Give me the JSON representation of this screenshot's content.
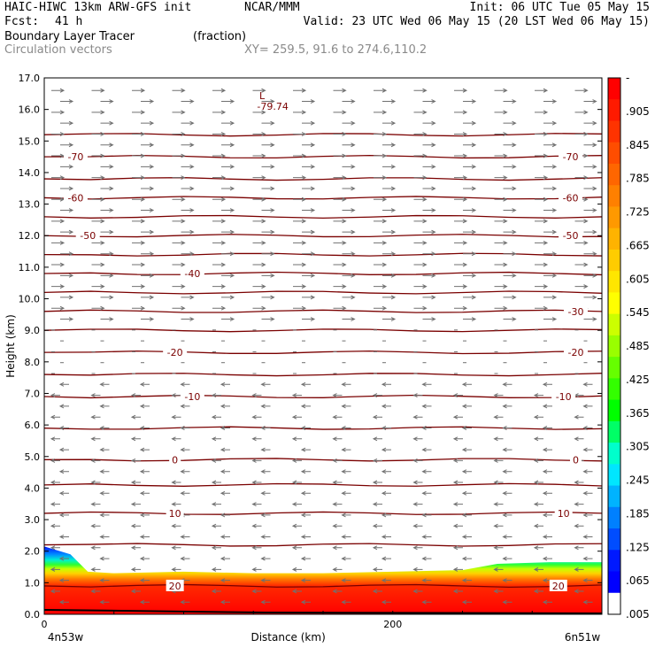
{
  "header": {
    "model": "HAIC-HIWC 13km ARW-GFS init",
    "org": "NCAR/MMM",
    "init": "Init: 06 UTC Tue 05 May 15",
    "fcst_label": "Fcst:",
    "fcst_value": "41 h",
    "valid": "Valid: 23 UTC Wed 06 May 15 (20 LST Wed 06 May 15)",
    "field": "Boundary Layer Tracer",
    "units": "(fraction)",
    "vectors": "Circulation vectors",
    "xy": "XY= 259.5, 91.6 to 274.6,110.2"
  },
  "chart_data": {
    "type": "cross-section",
    "ylabel": "Height (km)",
    "xlabel": "Distance (km)",
    "ylim": [
      0,
      17
    ],
    "xlim": [
      0,
      320
    ],
    "y_ticks": [
      "0.0",
      "1.0",
      "2.0",
      "3.0",
      "4.0",
      "5.0",
      "6.0",
      "7.0",
      "8.0",
      "9.0",
      "10.0",
      "11.0",
      "12.0",
      "13.0",
      "14.0",
      "15.0",
      "16.0",
      "17.0"
    ],
    "x_ticks": [
      {
        "value": 0,
        "label": "0"
      },
      {
        "value": 200,
        "label": "200"
      }
    ],
    "left_endpoint": "4n53w",
    "right_endpoint": "6n51w",
    "low_marker": {
      "symbol": "L",
      "value": "-79.74",
      "x_km": 125,
      "y_km": 16.1
    },
    "temperature_contours": [
      {
        "label": "-70",
        "height_km": 14.5,
        "label_x_km": [
          18,
          302
        ]
      },
      {
        "label": "-60",
        "height_km": 13.2,
        "label_x_km": [
          18,
          302
        ]
      },
      {
        "label": "-50",
        "height_km": 12.0,
        "label_x_km": [
          25,
          302
        ]
      },
      {
        "label": "-40",
        "height_km": 10.8,
        "label_x_km": [
          85
        ]
      },
      {
        "label": "-30",
        "height_km": 9.6,
        "label_x_km": [
          305
        ]
      },
      {
        "label": "-20",
        "height_km": 8.3,
        "label_x_km": [
          75,
          305
        ]
      },
      {
        "label": "-10",
        "height_km": 6.9,
        "label_x_km": [
          85,
          298
        ]
      },
      {
        "label": "0",
        "height_km": 4.9,
        "label_x_km": [
          75,
          305
        ]
      },
      {
        "label": "10",
        "height_km": 3.2,
        "label_x_km": [
          75,
          298
        ]
      },
      {
        "label": "20",
        "height_km": 0.9,
        "label_x_km": [
          75,
          295
        ]
      }
    ],
    "unlabeled_contour_heights_km": [
      15.2,
      13.8,
      12.6,
      11.4,
      10.2,
      9.0,
      7.6,
      5.9,
      4.1,
      2.2
    ],
    "tracer_boundary_km": [
      {
        "x": 0,
        "z": 2.15
      },
      {
        "x": 15,
        "z": 1.9
      },
      {
        "x": 25,
        "z": 1.35
      },
      {
        "x": 40,
        "z": 1.3
      },
      {
        "x": 80,
        "z": 1.35
      },
      {
        "x": 120,
        "z": 1.3
      },
      {
        "x": 160,
        "z": 1.3
      },
      {
        "x": 200,
        "z": 1.35
      },
      {
        "x": 240,
        "z": 1.4
      },
      {
        "x": 260,
        "z": 1.6
      },
      {
        "x": 290,
        "z": 1.65
      },
      {
        "x": 320,
        "z": 1.65
      }
    ],
    "wind_layers": [
      {
        "z_top": 17.0,
        "z_bottom": 9.3,
        "direction": "east"
      },
      {
        "z_top": 9.3,
        "z_bottom": 7.3,
        "direction": "calm"
      },
      {
        "z_top": 7.3,
        "z_bottom": 0.3,
        "direction": "west"
      }
    ],
    "colorbar": {
      "labels": [
        "-",
        ".905",
        ".845",
        ".785",
        ".725",
        ".665",
        ".605",
        ".545",
        ".485",
        ".425",
        ".365",
        ".305",
        ".245",
        ".185",
        ".125",
        ".065",
        ".005"
      ],
      "colors": [
        "#ff0000",
        "#ff1a00",
        "#ff3300",
        "#ff4d00",
        "#ff6600",
        "#ff8000",
        "#ff9900",
        "#ffb300",
        "#ffcc00",
        "#ffe600",
        "#ffff00",
        "#ccff00",
        "#99ff00",
        "#66ff00",
        "#33ff00",
        "#00ff00",
        "#00ff66",
        "#00ffcc",
        "#00e6ff",
        "#00b3ff",
        "#0080ff",
        "#004dff",
        "#0019ff",
        "#0000ff",
        "#ffffff"
      ]
    }
  }
}
